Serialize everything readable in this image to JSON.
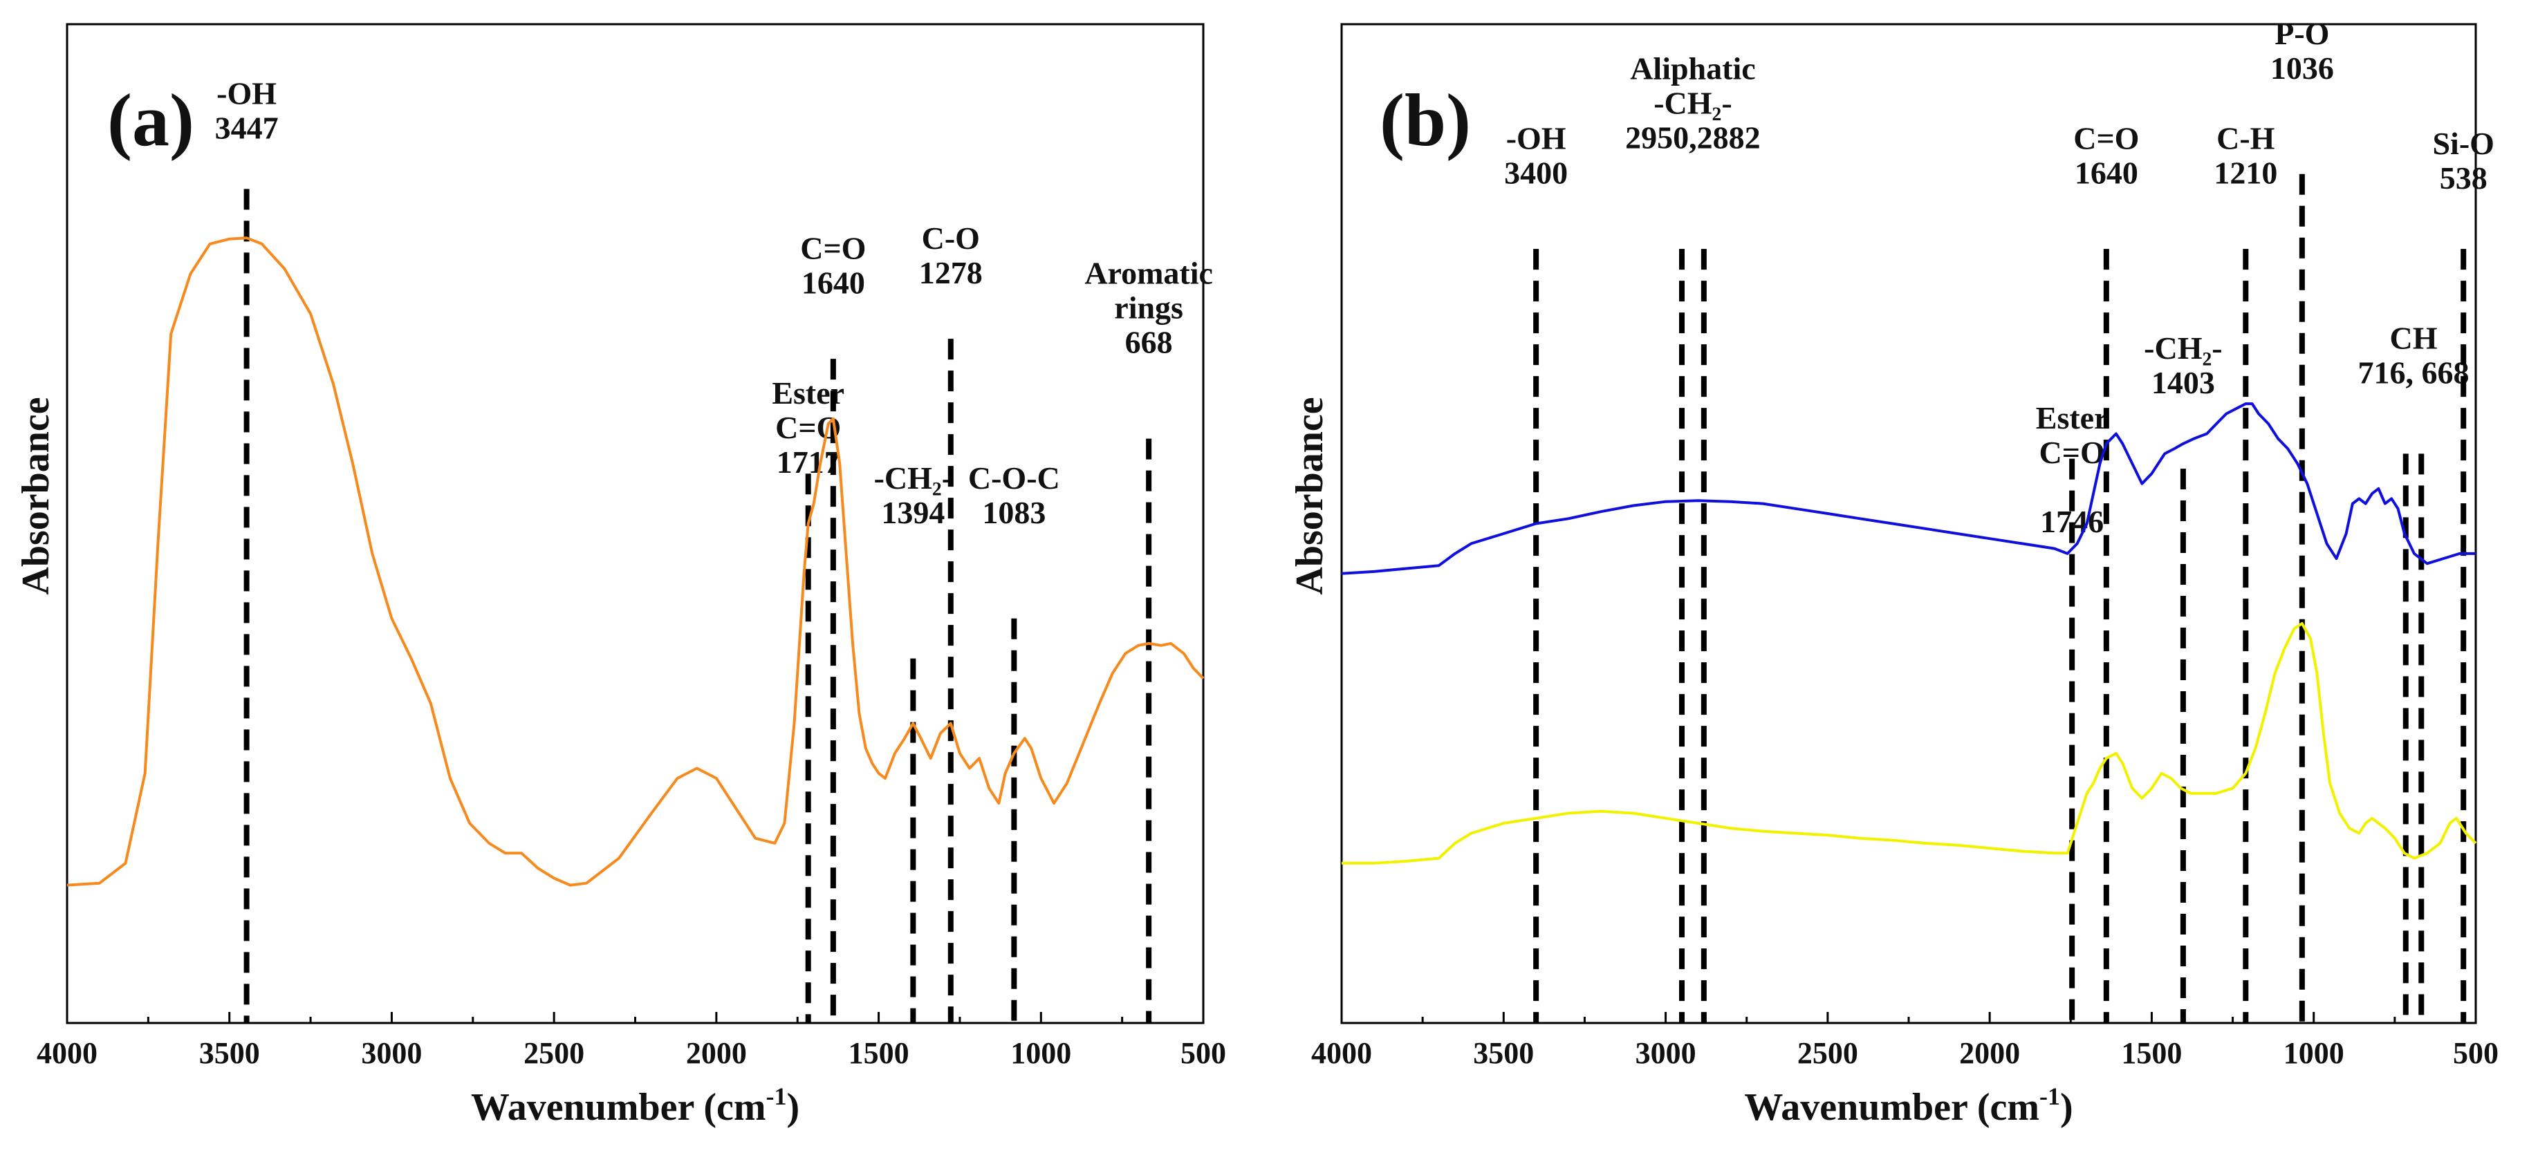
{
  "chart_data": [
    {
      "type": "line",
      "panel_label": "(a)",
      "xlabel": "Wavenumber (cm",
      "xlabel_sup": "-1",
      "xlabel_close": ")",
      "ylabel": "Absorbance",
      "xlim": [
        4000,
        500
      ],
      "ylim": [
        0,
        1
      ],
      "grid": false,
      "xticks": [
        "4000",
        "3500",
        "3000",
        "2500",
        "2000",
        "1500",
        "1000",
        "500"
      ],
      "tick_values": [
        4000,
        3500,
        3000,
        2500,
        2000,
        1500,
        1000,
        500
      ],
      "series": [
        {
          "name": "a-spectrum",
          "color": "#f58a1f",
          "points": [
            [
              4000,
              0.138
            ],
            [
              3900,
              0.14
            ],
            [
              3820,
              0.16
            ],
            [
              3760,
              0.25
            ],
            [
              3720,
              0.48
            ],
            [
              3680,
              0.69
            ],
            [
              3620,
              0.75
            ],
            [
              3560,
              0.78
            ],
            [
              3500,
              0.785
            ],
            [
              3447,
              0.786
            ],
            [
              3400,
              0.78
            ],
            [
              3330,
              0.755
            ],
            [
              3250,
              0.71
            ],
            [
              3180,
              0.64
            ],
            [
              3120,
              0.56
            ],
            [
              3060,
              0.47
            ],
            [
              3000,
              0.405
            ],
            [
              2940,
              0.365
            ],
            [
              2880,
              0.32
            ],
            [
              2820,
              0.245
            ],
            [
              2760,
              0.2
            ],
            [
              2700,
              0.18
            ],
            [
              2650,
              0.17
            ],
            [
              2600,
              0.17
            ],
            [
              2550,
              0.155
            ],
            [
              2500,
              0.145
            ],
            [
              2450,
              0.138
            ],
            [
              2400,
              0.14
            ],
            [
              2300,
              0.165
            ],
            [
              2200,
              0.21
            ],
            [
              2120,
              0.245
            ],
            [
              2060,
              0.255
            ],
            [
              2000,
              0.245
            ],
            [
              1930,
              0.21
            ],
            [
              1880,
              0.185
            ],
            [
              1820,
              0.18
            ],
            [
              1790,
              0.2
            ],
            [
              1760,
              0.3
            ],
            [
              1730,
              0.45
            ],
            [
              1717,
              0.5
            ],
            [
              1700,
              0.52
            ],
            [
              1680,
              0.56
            ],
            [
              1655,
              0.6
            ],
            [
              1640,
              0.605
            ],
            [
              1620,
              0.56
            ],
            [
              1600,
              0.47
            ],
            [
              1580,
              0.38
            ],
            [
              1560,
              0.31
            ],
            [
              1540,
              0.275
            ],
            [
              1520,
              0.26
            ],
            [
              1500,
              0.25
            ],
            [
              1480,
              0.245
            ],
            [
              1450,
              0.27
            ],
            [
              1420,
              0.285
            ],
            [
              1394,
              0.3
            ],
            [
              1370,
              0.285
            ],
            [
              1340,
              0.265
            ],
            [
              1310,
              0.29
            ],
            [
              1278,
              0.3
            ],
            [
              1250,
              0.27
            ],
            [
              1220,
              0.255
            ],
            [
              1190,
              0.265
            ],
            [
              1160,
              0.235
            ],
            [
              1130,
              0.22
            ],
            [
              1110,
              0.25
            ],
            [
              1083,
              0.27
            ],
            [
              1050,
              0.285
            ],
            [
              1030,
              0.275
            ],
            [
              1000,
              0.245
            ],
            [
              960,
              0.22
            ],
            [
              920,
              0.24
            ],
            [
              870,
              0.28
            ],
            [
              820,
              0.32
            ],
            [
              780,
              0.35
            ],
            [
              740,
              0.37
            ],
            [
              700,
              0.378
            ],
            [
              668,
              0.38
            ],
            [
              630,
              0.378
            ],
            [
              600,
              0.38
            ],
            [
              560,
              0.37
            ],
            [
              530,
              0.355
            ],
            [
              500,
              0.345
            ]
          ]
        }
      ],
      "annotations": [
        {
          "lines": [
            "-OH",
            "3447"
          ],
          "x": 3447,
          "label_top": 0.92,
          "line_top": 0.835
        },
        {
          "lines": [
            "Ester",
            "C=O",
            "1717"
          ],
          "x": 1717,
          "label_top": 0.62,
          "line_top": 0.55
        },
        {
          "lines": [
            "C=O",
            "1640"
          ],
          "x": 1640,
          "label_top": 0.765,
          "line_top": 0.665
        },
        {
          "lines": [
            "-CH₂-",
            "1394"
          ],
          "x": 1394,
          "label_top": 0.535,
          "line_top": 0.365
        },
        {
          "lines": [
            "C-O",
            "1278"
          ],
          "x": 1278,
          "label_top": 0.775,
          "line_top": 0.685
        },
        {
          "lines": [
            "C-O-C",
            "1083"
          ],
          "x": 1083,
          "label_top": 0.535,
          "line_top": 0.405
        },
        {
          "lines": [
            "Aromatic",
            "rings",
            "668"
          ],
          "x": 668,
          "label_top": 0.74,
          "line_top": 0.585
        }
      ]
    },
    {
      "type": "line",
      "panel_label": "(b)",
      "xlabel": "Wavenumber (cm",
      "xlabel_sup": "-1",
      "xlabel_close": ")",
      "ylabel": "Absorbance",
      "xlim": [
        4000,
        500
      ],
      "ylim": [
        0,
        1
      ],
      "grid": false,
      "xticks": [
        "4000",
        "3500",
        "3000",
        "2500",
        "2000",
        "1500",
        "1000",
        "500"
      ],
      "tick_values": [
        4000,
        3500,
        3000,
        2500,
        2000,
        1500,
        1000,
        500
      ],
      "series": [
        {
          "name": "b-blue-spectrum",
          "color": "#1010dd",
          "points": [
            [
              4000,
              0.45
            ],
            [
              3900,
              0.452
            ],
            [
              3800,
              0.455
            ],
            [
              3700,
              0.458
            ],
            [
              3650,
              0.47
            ],
            [
              3600,
              0.48
            ],
            [
              3500,
              0.49
            ],
            [
              3400,
              0.5
            ],
            [
              3300,
              0.505
            ],
            [
              3200,
              0.512
            ],
            [
              3100,
              0.518
            ],
            [
              3000,
              0.522
            ],
            [
              2900,
              0.523
            ],
            [
              2800,
              0.522
            ],
            [
              2700,
              0.52
            ],
            [
              2600,
              0.515
            ],
            [
              2500,
              0.51
            ],
            [
              2400,
              0.505
            ],
            [
              2300,
              0.5
            ],
            [
              2200,
              0.495
            ],
            [
              2100,
              0.49
            ],
            [
              2000,
              0.485
            ],
            [
              1900,
              0.48
            ],
            [
              1800,
              0.475
            ],
            [
              1760,
              0.47
            ],
            [
              1730,
              0.48
            ],
            [
              1700,
              0.5
            ],
            [
              1680,
              0.53
            ],
            [
              1660,
              0.56
            ],
            [
              1640,
              0.58
            ],
            [
              1610,
              0.59
            ],
            [
              1590,
              0.58
            ],
            [
              1560,
              0.56
            ],
            [
              1530,
              0.54
            ],
            [
              1500,
              0.55
            ],
            [
              1460,
              0.57
            ],
            [
              1430,
              0.575
            ],
            [
              1403,
              0.58
            ],
            [
              1370,
              0.585
            ],
            [
              1330,
              0.59
            ],
            [
              1300,
              0.6
            ],
            [
              1270,
              0.61
            ],
            [
              1240,
              0.615
            ],
            [
              1210,
              0.62
            ],
            [
              1190,
              0.62
            ],
            [
              1170,
              0.61
            ],
            [
              1140,
              0.6
            ],
            [
              1110,
              0.585
            ],
            [
              1080,
              0.575
            ],
            [
              1050,
              0.56
            ],
            [
              1020,
              0.54
            ],
            [
              990,
              0.51
            ],
            [
              960,
              0.48
            ],
            [
              930,
              0.465
            ],
            [
              900,
              0.49
            ],
            [
              880,
              0.52
            ],
            [
              860,
              0.525
            ],
            [
              840,
              0.52
            ],
            [
              820,
              0.53
            ],
            [
              800,
              0.535
            ],
            [
              780,
              0.52
            ],
            [
              760,
              0.525
            ],
            [
              740,
              0.515
            ],
            [
              720,
              0.49
            ],
            [
              690,
              0.47
            ],
            [
              650,
              0.46
            ],
            [
              600,
              0.465
            ],
            [
              550,
              0.47
            ],
            [
              500,
              0.47
            ]
          ]
        },
        {
          "name": "b-yellow-spectrum",
          "color": "#f2f200",
          "points": [
            [
              4000,
              0.16
            ],
            [
              3900,
              0.16
            ],
            [
              3800,
              0.162
            ],
            [
              3700,
              0.165
            ],
            [
              3650,
              0.18
            ],
            [
              3600,
              0.19
            ],
            [
              3500,
              0.2
            ],
            [
              3400,
              0.205
            ],
            [
              3300,
              0.21
            ],
            [
              3200,
              0.212
            ],
            [
              3100,
              0.21
            ],
            [
              3000,
              0.205
            ],
            [
              2900,
              0.2
            ],
            [
              2800,
              0.195
            ],
            [
              2700,
              0.192
            ],
            [
              2600,
              0.19
            ],
            [
              2500,
              0.188
            ],
            [
              2400,
              0.185
            ],
            [
              2300,
              0.183
            ],
            [
              2200,
              0.18
            ],
            [
              2100,
              0.178
            ],
            [
              2000,
              0.175
            ],
            [
              1900,
              0.172
            ],
            [
              1800,
              0.17
            ],
            [
              1760,
              0.17
            ],
            [
              1730,
              0.2
            ],
            [
              1700,
              0.23
            ],
            [
              1680,
              0.24
            ],
            [
              1660,
              0.255
            ],
            [
              1640,
              0.265
            ],
            [
              1610,
              0.27
            ],
            [
              1590,
              0.26
            ],
            [
              1560,
              0.235
            ],
            [
              1530,
              0.225
            ],
            [
              1500,
              0.235
            ],
            [
              1470,
              0.25
            ],
            [
              1440,
              0.245
            ],
            [
              1410,
              0.235
            ],
            [
              1380,
              0.23
            ],
            [
              1350,
              0.23
            ],
            [
              1300,
              0.23
            ],
            [
              1250,
              0.235
            ],
            [
              1210,
              0.25
            ],
            [
              1180,
              0.275
            ],
            [
              1150,
              0.31
            ],
            [
              1120,
              0.35
            ],
            [
              1090,
              0.375
            ],
            [
              1060,
              0.395
            ],
            [
              1036,
              0.4
            ],
            [
              1010,
              0.385
            ],
            [
              990,
              0.35
            ],
            [
              970,
              0.29
            ],
            [
              950,
              0.24
            ],
            [
              920,
              0.21
            ],
            [
              890,
              0.195
            ],
            [
              860,
              0.19
            ],
            [
              840,
              0.2
            ],
            [
              820,
              0.205
            ],
            [
              800,
              0.2
            ],
            [
              780,
              0.195
            ],
            [
              750,
              0.185
            ],
            [
              720,
              0.17
            ],
            [
              690,
              0.165
            ],
            [
              650,
              0.17
            ],
            [
              610,
              0.18
            ],
            [
              580,
              0.2
            ],
            [
              560,
              0.205
            ],
            [
              530,
              0.19
            ],
            [
              500,
              0.18
            ]
          ]
        }
      ],
      "annotations": [
        {
          "lines": [
            "-OH",
            "3400"
          ],
          "x": 3400,
          "label_top": 0.875,
          "line_top": 0.775
        },
        {
          "lines": [
            "Aliphatic",
            "-CH₂-",
            "2950,2882"
          ],
          "x": 2950,
          "x2": 2882,
          "label_top": 0.945,
          "line_top": 0.775
        },
        {
          "lines": [
            "Ester",
            "C=O",
            "",
            "1746"
          ],
          "x": 1746,
          "label_top": 0.595,
          "line_top": 0.565
        },
        {
          "lines": [
            "C=O",
            "1640"
          ],
          "x": 1640,
          "label_top": 0.875,
          "line_top": 0.775
        },
        {
          "lines": [
            "-CH₂-",
            "1403"
          ],
          "x": 1403,
          "label_top": 0.665,
          "line_top": 0.555
        },
        {
          "lines": [
            "C-H",
            "1210"
          ],
          "x": 1210,
          "label_top": 0.875,
          "line_top": 0.775
        },
        {
          "lines": [
            "P-O",
            "1036"
          ],
          "x": 1036,
          "label_top": 0.98,
          "line_top": 0.85
        },
        {
          "lines": [
            "CH",
            "716, 668"
          ],
          "x": 716,
          "x2": 668,
          "label_top": 0.675,
          "line_top": 0.57
        },
        {
          "lines": [
            "Si-O",
            "538"
          ],
          "x": 538,
          "label_top": 0.87,
          "line_top": 0.775
        }
      ]
    }
  ]
}
